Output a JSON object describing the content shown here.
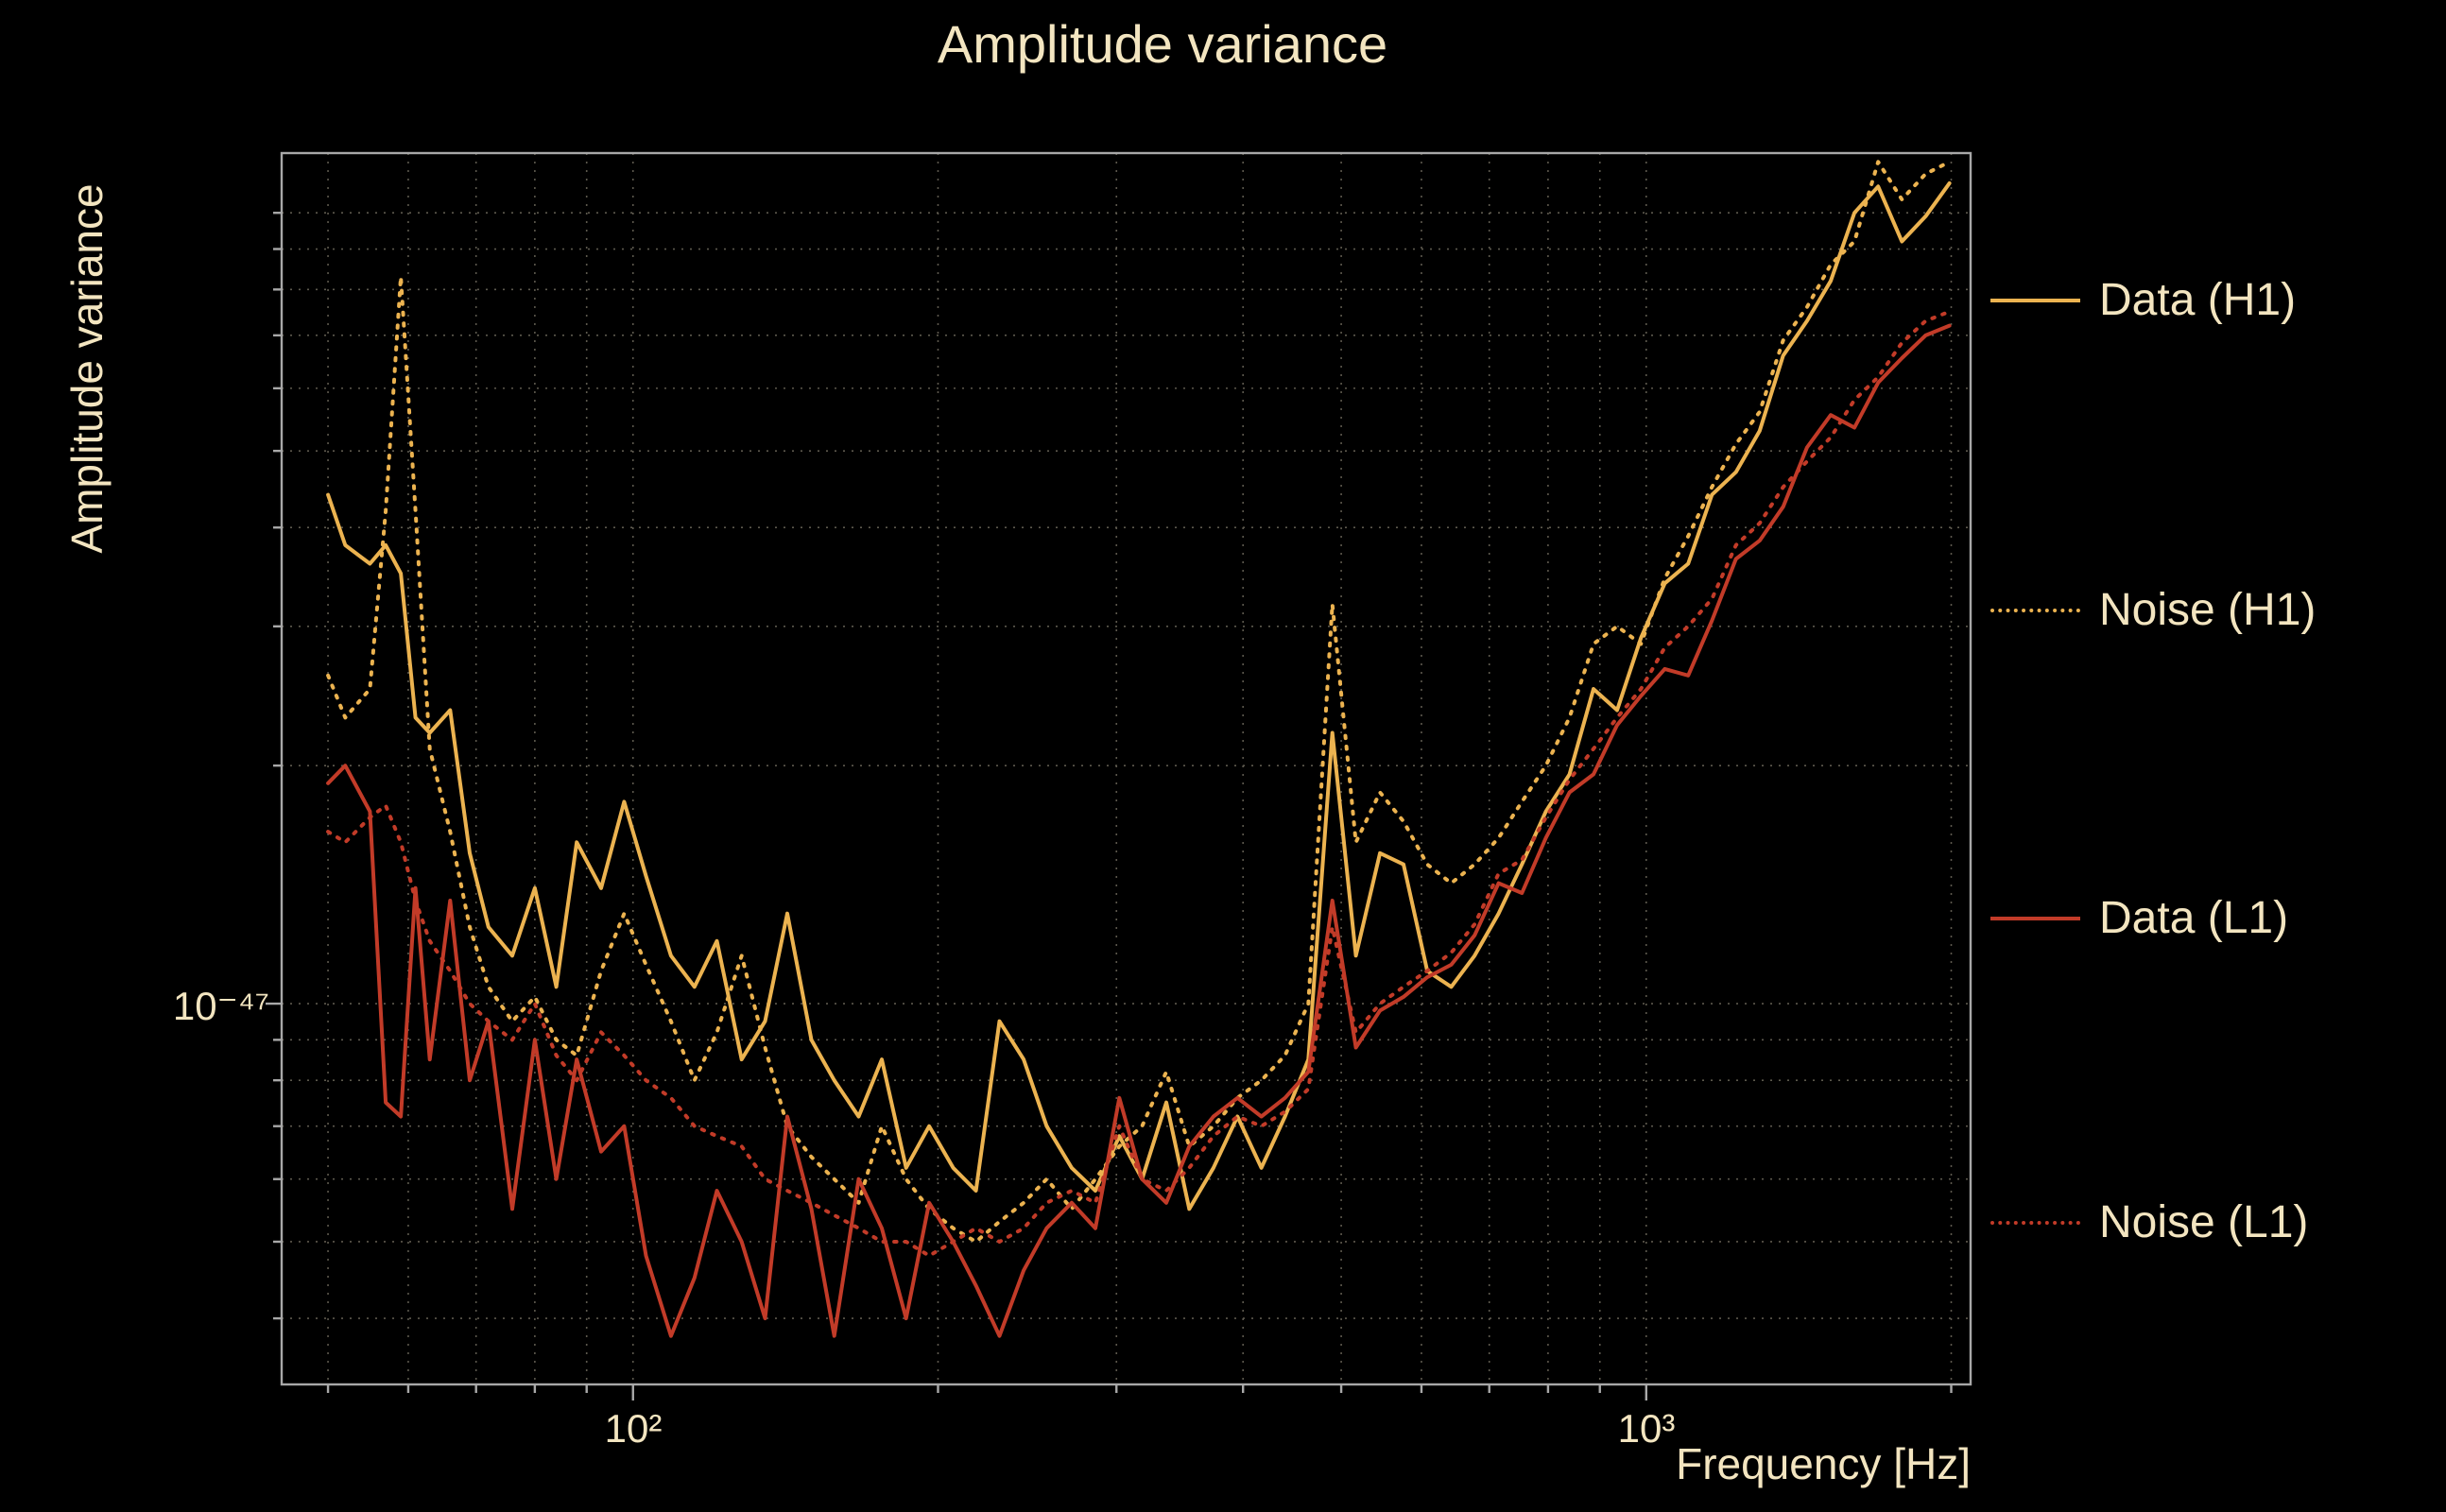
{
  "colors": {
    "background": "#000000",
    "text": "#f3e5c0",
    "gold": "#ecb350",
    "red": "#c23b28",
    "grid": "#5d594e",
    "spine": "#a8a8a8"
  },
  "chart_data": {
    "type": "line",
    "title": "Amplitude variance",
    "xlabel": "Frequency [Hz]",
    "ylabel": "Amplitude variance",
    "xscale": "log",
    "yscale": "log",
    "grid": true,
    "legend_position": "right",
    "xlim": [
      45,
      2090
    ],
    "ylim": [
      3.3e-48,
      1.19e-46
    ],
    "xticks": [
      {
        "label": "10²",
        "value": 100
      },
      {
        "label": "10³",
        "value": 1000
      }
    ],
    "yticks": [
      {
        "label": "10⁻⁴⁷",
        "value": 1e-47
      }
    ],
    "x_gridlines": [
      50,
      60,
      70,
      80,
      90,
      100,
      200,
      300,
      400,
      500,
      600,
      700,
      800,
      900,
      1000,
      2000
    ],
    "y_gridlines": [
      4e-48,
      5e-48,
      6e-48,
      7e-48,
      8e-48,
      9e-48,
      1e-47,
      2e-47,
      3e-47,
      4e-47,
      5e-47,
      6e-47,
      7e-47,
      8e-47,
      9e-47,
      1e-46
    ],
    "x": [
      50,
      52,
      55,
      57,
      59,
      61,
      63,
      66,
      69,
      72,
      76,
      80,
      84,
      88,
      93,
      98,
      103,
      109,
      115,
      121,
      128,
      135,
      142,
      150,
      158,
      167,
      176,
      186,
      196,
      207,
      218,
      230,
      243,
      256,
      271,
      286,
      302,
      318,
      336,
      354,
      374,
      395,
      417,
      440,
      464,
      490,
      517,
      546,
      576,
      608,
      642,
      677,
      715,
      754,
      796,
      840,
      887,
      936,
      988,
      1043,
      1100,
      1161,
      1226,
      1294,
      1365,
      1441,
      1521,
      1605,
      1694,
      1788,
      1887,
      1992
    ],
    "series": [
      {
        "name": "Data (H1)",
        "color": "#ecb350",
        "style": "solid",
        "values": [
          4.4e-47,
          3.8e-47,
          3.6e-47,
          3.8e-47,
          3.5e-47,
          2.3e-47,
          2.2e-47,
          2.35e-47,
          1.55e-47,
          1.25e-47,
          1.15e-47,
          1.4e-47,
          1.05e-47,
          1.6e-47,
          1.4e-47,
          1.8e-47,
          1.45e-47,
          1.15e-47,
          1.05e-47,
          1.2e-47,
          8.5e-48,
          9.5e-48,
          1.3e-47,
          9e-48,
          8e-48,
          7.2e-48,
          8.5e-48,
          6.2e-48,
          7e-48,
          6.2e-48,
          5.8e-48,
          9.5e-48,
          8.5e-48,
          7e-48,
          6.2e-48,
          5.8e-48,
          6.8e-48,
          6e-48,
          7.5e-48,
          5.5e-48,
          6.2e-48,
          7.2e-48,
          6.2e-48,
          7.2e-48,
          8.5e-48,
          2.2e-47,
          1.15e-47,
          1.55e-47,
          1.5e-47,
          1.1e-47,
          1.05e-47,
          1.15e-47,
          1.3e-47,
          1.5e-47,
          1.75e-47,
          1.95e-47,
          2.5e-47,
          2.35e-47,
          2.9e-47,
          3.4e-47,
          3.6e-47,
          4.4e-47,
          4.7e-47,
          5.3e-47,
          6.6e-47,
          7.3e-47,
          8.2e-47,
          1e-46,
          1.08e-46,
          9.2e-47,
          9.9e-47,
          1.09e-46
        ]
      },
      {
        "name": "Noise (H1)",
        "color": "#ecb350",
        "style": "dotted",
        "values": [
          2.6e-47,
          2.3e-47,
          2.5e-47,
          4.2e-47,
          8.3e-47,
          4.2e-47,
          2.1e-47,
          1.65e-47,
          1.25e-47,
          1.05e-47,
          9.5e-48,
          1.02e-47,
          9e-48,
          8.6e-48,
          1.1e-47,
          1.3e-47,
          1.12e-47,
          9.5e-48,
          8e-48,
          9.2e-48,
          1.15e-47,
          8.8e-48,
          7e-48,
          6.4e-48,
          6e-48,
          5.6e-48,
          7e-48,
          6e-48,
          5.5e-48,
          5.2e-48,
          5e-48,
          5.3e-48,
          5.6e-48,
          6e-48,
          5.5e-48,
          6e-48,
          6.6e-48,
          7e-48,
          8.2e-48,
          6.6e-48,
          7e-48,
          7.6e-48,
          8e-48,
          8.6e-48,
          1e-47,
          3.2e-47,
          1.6e-47,
          1.85e-47,
          1.7e-47,
          1.5e-47,
          1.42e-47,
          1.5e-47,
          1.62e-47,
          1.8e-47,
          2e-47,
          2.3e-47,
          2.85e-47,
          3e-47,
          2.85e-47,
          3.45e-47,
          3.9e-47,
          4.5e-47,
          5.1e-47,
          5.6e-47,
          6.9e-47,
          7.6e-47,
          8.6e-47,
          9.2e-47,
          1.16e-46,
          1.04e-46,
          1.12e-46,
          1.16e-46
        ]
      },
      {
        "name": "Data (L1)",
        "color": "#c23b28",
        "style": "solid",
        "values": [
          1.9e-47,
          2e-47,
          1.75e-47,
          7.5e-48,
          7.2e-48,
          1.4e-47,
          8.5e-48,
          1.35e-47,
          8e-48,
          9.5e-48,
          5.5e-48,
          9e-48,
          6e-48,
          8.5e-48,
          6.5e-48,
          7e-48,
          4.8e-48,
          3.8e-48,
          4.5e-48,
          5.8e-48,
          5e-48,
          4e-48,
          7.2e-48,
          5.5e-48,
          3.8e-48,
          6e-48,
          5.2e-48,
          4e-48,
          5.6e-48,
          5e-48,
          4.4e-48,
          3.8e-48,
          4.6e-48,
          5.2e-48,
          5.6e-48,
          5.2e-48,
          7.6e-48,
          6e-48,
          5.6e-48,
          6.6e-48,
          7.2e-48,
          7.6e-48,
          7.2e-48,
          7.6e-48,
          8.2e-48,
          1.35e-47,
          8.8e-48,
          9.8e-48,
          1.02e-47,
          1.08e-47,
          1.12e-47,
          1.22e-47,
          1.42e-47,
          1.38e-47,
          1.62e-47,
          1.85e-47,
          1.95e-47,
          2.25e-47,
          2.45e-47,
          2.65e-47,
          2.6e-47,
          3.05e-47,
          3.65e-47,
          3.85e-47,
          4.25e-47,
          5.05e-47,
          5.55e-47,
          5.35e-47,
          6.1e-47,
          6.55e-47,
          7e-47,
          7.2e-47
        ]
      },
      {
        "name": "Noise (L1)",
        "color": "#c23b28",
        "style": "dotted",
        "values": [
          1.65e-47,
          1.6e-47,
          1.72e-47,
          1.78e-47,
          1.6e-47,
          1.35e-47,
          1.2e-47,
          1.1e-47,
          1e-47,
          9.5e-48,
          9e-48,
          1e-47,
          8.6e-48,
          8e-48,
          9.2e-48,
          8.6e-48,
          8e-48,
          7.6e-48,
          7e-48,
          6.8e-48,
          6.6e-48,
          6e-48,
          5.8e-48,
          5.6e-48,
          5.4e-48,
          5.2e-48,
          5e-48,
          5e-48,
          4.8e-48,
          5e-48,
          5.2e-48,
          5e-48,
          5.2e-48,
          5.6e-48,
          5.8e-48,
          5.6e-48,
          7e-48,
          6e-48,
          5.8e-48,
          6.2e-48,
          6.8e-48,
          7.2e-48,
          7e-48,
          7.3e-48,
          7.8e-48,
          1.25e-47,
          9.2e-48,
          1e-47,
          1.05e-47,
          1.1e-47,
          1.16e-47,
          1.26e-47,
          1.46e-47,
          1.52e-47,
          1.72e-47,
          1.92e-47,
          2.1e-47,
          2.3e-47,
          2.5e-47,
          2.82e-47,
          3e-47,
          3.25e-47,
          3.8e-47,
          4.05e-47,
          4.5e-47,
          4.85e-47,
          5.2e-47,
          5.8e-47,
          6.2e-47,
          6.85e-47,
          7.3e-47,
          7.5e-47
        ]
      }
    ]
  },
  "legend": {
    "items": [
      {
        "label": "Data (H1)"
      },
      {
        "label": "Noise (H1)"
      },
      {
        "label": "Data (L1)"
      },
      {
        "label": "Noise (L1)"
      }
    ]
  }
}
